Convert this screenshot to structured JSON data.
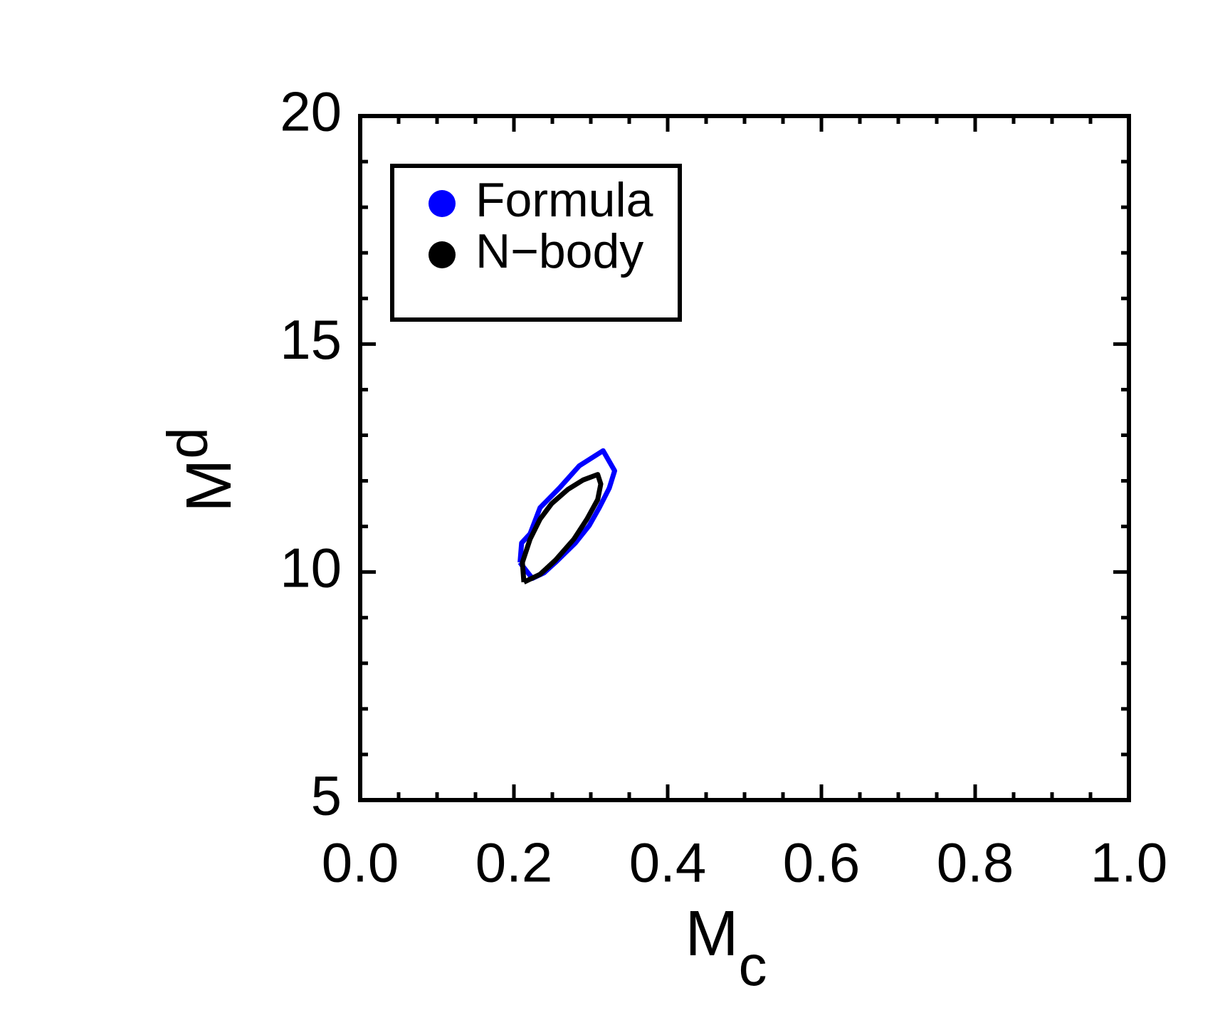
{
  "chart_data": {
    "type": "line",
    "xlabel": {
      "text": "M",
      "subscript": "c"
    },
    "ylabel": {
      "text": "M",
      "subscript": "d"
    },
    "xlim": [
      0,
      1
    ],
    "ylim": [
      5,
      20
    ],
    "xticks": [
      {
        "value": 0,
        "label": "0.0"
      },
      0.2,
      0.4,
      0.6,
      0.8,
      {
        "value": 1,
        "label": "1.0"
      }
    ],
    "yticks": [
      5,
      10,
      15,
      20
    ],
    "xminorticks": [
      0.05,
      0.1,
      0.15,
      0.25,
      0.3,
      0.35,
      0.45,
      0.5,
      0.55,
      0.65,
      0.7,
      0.75,
      0.85,
      0.9,
      0.95
    ],
    "yminorticks": [
      6,
      7,
      8,
      9,
      11,
      12,
      13,
      14,
      16,
      17,
      18,
      19
    ],
    "legend": "upper left",
    "series": [
      {
        "name": "Formula",
        "color": "#0000ff",
        "x": [
          0.208,
          0.21,
          0.221,
          0.234,
          0.259,
          0.285,
          0.316,
          0.331,
          0.324,
          0.311,
          0.298,
          0.28,
          0.254,
          0.239,
          0.224,
          0.21,
          0.208
        ],
        "values": [
          10.21,
          10.64,
          10.84,
          11.41,
          11.84,
          12.33,
          12.66,
          12.22,
          11.84,
          11.41,
          11.02,
          10.64,
          10.21,
          9.98,
          9.86,
          10.16,
          10.21
        ]
      },
      {
        "name": "N−body",
        "color": "#000000",
        "x": [
          0.213,
          0.211,
          0.221,
          0.234,
          0.249,
          0.27,
          0.29,
          0.309,
          0.313,
          0.309,
          0.295,
          0.278,
          0.254,
          0.234,
          0.213
        ],
        "values": [
          9.78,
          10.21,
          10.72,
          11.16,
          11.5,
          11.81,
          12.02,
          12.14,
          11.93,
          11.59,
          11.16,
          10.72,
          10.26,
          9.95,
          9.78
        ]
      }
    ]
  }
}
